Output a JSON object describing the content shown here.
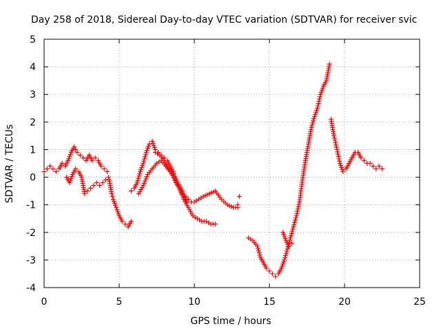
{
  "chart_data": {
    "type": "scatter",
    "title": "Day 258 of 2018, Sidereal Day-to-day VTEC variation (SDTVAR) for receiver svic",
    "xlabel": "GPS time / hours",
    "ylabel": "SDTVAR / TECUs",
    "xlim": [
      0,
      25
    ],
    "ylim": [
      -4,
      5
    ],
    "xticks": [
      0,
      5,
      10,
      15,
      20,
      25
    ],
    "yticks": [
      -4,
      -3,
      -2,
      -1,
      0,
      1,
      2,
      3,
      4,
      5
    ],
    "grid": true,
    "marker": "+",
    "color": "#ff0000",
    "series": [
      {
        "name": "SDTVAR",
        "x": [
          0.0,
          0.2,
          0.4,
          0.6,
          0.8,
          1.0,
          1.2,
          1.4,
          1.6,
          1.8,
          2.0,
          2.1,
          2.2,
          2.4,
          2.6,
          2.8,
          3.0,
          3.2,
          3.4,
          3.6,
          3.8,
          4.0,
          4.2,
          1.5,
          1.7,
          1.9,
          2.1,
          2.3,
          2.5,
          2.7,
          2.9,
          3.1,
          3.3,
          3.5,
          3.7,
          3.9,
          4.1,
          4.3,
          4.5,
          4.6,
          4.8,
          5.0,
          5.2,
          5.4,
          5.6,
          5.8,
          5.8,
          6.0,
          6.2,
          6.4,
          6.6,
          6.8,
          7.0,
          7.2,
          7.4,
          7.6,
          7.8,
          8.0,
          8.2,
          8.4,
          8.6,
          8.8,
          9.0,
          9.2,
          9.4,
          9.6,
          9.8,
          10.0,
          10.3,
          10.6,
          11.0,
          11.4,
          11.8,
          12.2,
          12.6,
          12.9,
          6.3,
          6.6,
          6.9,
          7.2,
          7.5,
          7.8,
          8.1,
          8.4,
          8.7,
          9.0,
          9.3,
          9.6,
          9.9,
          10.2,
          10.5,
          10.8,
          11.1,
          11.4,
          7.4,
          7.7,
          8.0,
          8.3,
          8.6,
          8.9,
          9.2,
          9.5,
          13.0,
          12.9,
          13.6,
          13.9,
          14.2,
          14.4,
          14.6,
          14.8,
          15.0,
          15.2,
          15.4,
          15.6,
          15.8,
          16.0,
          16.2,
          16.4,
          16.6,
          16.8,
          17.0,
          17.2,
          17.4,
          17.6,
          17.8,
          18.0,
          18.2,
          18.4,
          18.6,
          18.8,
          19.0,
          15.9,
          16.1,
          16.3,
          16.5,
          19.1,
          19.3,
          19.5,
          19.7,
          19.9,
          20.1,
          20.3,
          20.5,
          20.7,
          20.9,
          21.1,
          21.3,
          21.5,
          21.7,
          21.9,
          22.1,
          22.3,
          22.5
        ],
        "y": [
          0.2,
          0.3,
          0.4,
          0.3,
          0.2,
          0.3,
          0.5,
          0.4,
          0.6,
          0.9,
          1.1,
          1.0,
          0.9,
          0.8,
          0.7,
          0.6,
          0.8,
          0.6,
          0.7,
          0.6,
          0.4,
          0.3,
          0.2,
          0.0,
          -0.2,
          0.1,
          0.3,
          0.2,
          0.0,
          -0.6,
          -0.5,
          -0.4,
          -0.3,
          -0.2,
          -0.3,
          -0.2,
          -0.1,
          0.0,
          -0.6,
          -0.8,
          -1.1,
          -1.4,
          -1.6,
          -1.7,
          -1.8,
          -1.6,
          -0.5,
          -0.4,
          -0.2,
          0.2,
          0.5,
          0.9,
          1.2,
          1.3,
          1.0,
          0.9,
          0.8,
          0.7,
          0.6,
          0.4,
          0.2,
          -0.2,
          -0.4,
          -0.6,
          -0.7,
          -0.8,
          -0.9,
          -0.9,
          -0.8,
          -0.7,
          -0.6,
          -0.5,
          -0.8,
          -1.0,
          -1.1,
          -1.1,
          -0.6,
          -0.3,
          0.1,
          0.3,
          0.5,
          0.6,
          0.4,
          0.2,
          -0.1,
          -0.4,
          -0.8,
          -1.1,
          -1.4,
          -1.5,
          -1.6,
          -1.6,
          -1.7,
          -1.7,
          0.9,
          0.8,
          0.6,
          0.3,
          0.1,
          -0.2,
          -0.5,
          -0.9,
          -0.7,
          -1.0,
          -2.2,
          -2.3,
          -2.5,
          -2.9,
          -3.1,
          -3.3,
          -3.4,
          -3.5,
          -3.6,
          -3.5,
          -3.3,
          -3.0,
          -2.6,
          -2.2,
          -1.8,
          -1.4,
          -0.9,
          -0.1,
          0.6,
          1.2,
          1.8,
          2.2,
          2.5,
          3.0,
          3.3,
          3.5,
          4.1,
          -2.0,
          -2.3,
          -2.5,
          -2.4,
          2.1,
          1.5,
          1.0,
          0.5,
          0.2,
          0.3,
          0.5,
          0.7,
          0.9,
          0.9,
          0.7,
          0.6,
          0.5,
          0.5,
          0.4,
          0.3,
          0.4,
          0.3
        ]
      }
    ]
  }
}
